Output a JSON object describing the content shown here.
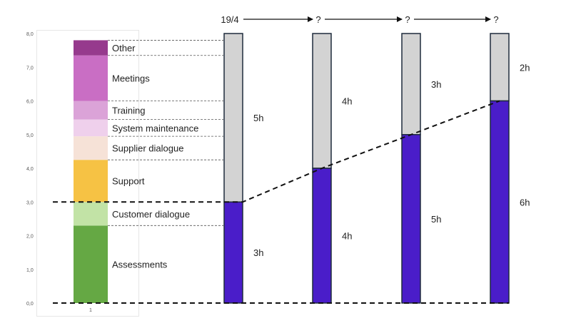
{
  "chart_data": [
    {
      "type": "bar",
      "stacked": true,
      "categories": [
        "1"
      ],
      "y_ticks": [
        "0,0",
        "1,0",
        "2,0",
        "3,0",
        "4,0",
        "5,0",
        "6,0",
        "7,0",
        "8,0"
      ],
      "ylim": [
        0,
        8
      ],
      "grid": false,
      "series": [
        {
          "name": "Assessments",
          "value": 2.3,
          "color": "#65a844"
        },
        {
          "name": "Customer dialogue",
          "value": 0.7,
          "color": "#c2e3a6"
        },
        {
          "name": "Support",
          "value": 1.25,
          "color": "#f6c244"
        },
        {
          "name": "Supplier dialogue",
          "value": 0.7,
          "color": "#f6e2d7"
        },
        {
          "name": "System maintenance",
          "value": 0.5,
          "color": "#efd0ec"
        },
        {
          "name": "Training",
          "value": 0.55,
          "color": "#dba3d8"
        },
        {
          "name": "Meetings",
          "value": 1.35,
          "color": "#c96ec4"
        },
        {
          "name": "Other",
          "value": 0.45,
          "color": "#963a8d"
        }
      ]
    },
    {
      "type": "bar",
      "stacked": true,
      "categories": [
        "19/4",
        "?",
        "?",
        "?"
      ],
      "total": 8,
      "series": [
        {
          "values": [
            3,
            4,
            5,
            6
          ],
          "labels": [
            "3h",
            "4h",
            "5h",
            "6h"
          ],
          "color": "#4a1dc9"
        },
        {
          "values": [
            5,
            4,
            3,
            2
          ],
          "labels": [
            "5h",
            "4h",
            "3h",
            "2h"
          ],
          "color": "#d3d3d3"
        }
      ]
    }
  ]
}
